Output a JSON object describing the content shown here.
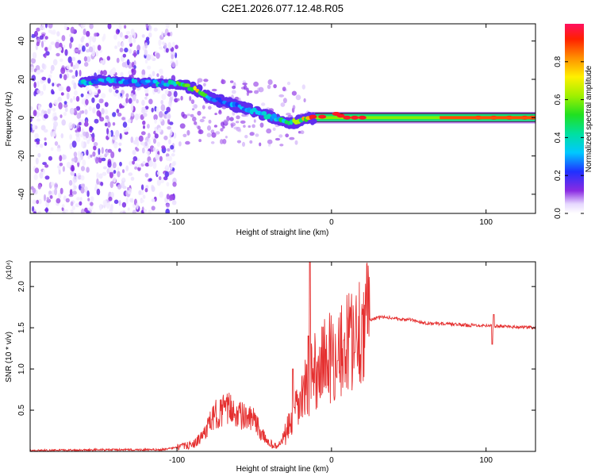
{
  "title": "C2E1.2026.077.12.48.R05",
  "chart_data": [
    {
      "type": "heatmap",
      "xlabel": "Height of straight line (km)",
      "ylabel": "Frequency (Hz)",
      "xlim": [
        -195,
        132
      ],
      "ylim": [
        -50,
        49
      ],
      "xticks": [
        {
          "value": -100,
          "label": "-100"
        },
        {
          "value": 0,
          "label": "0"
        },
        {
          "value": 100,
          "label": "100"
        }
      ],
      "yticks": [
        {
          "value": -40,
          "label": "-40"
        },
        {
          "value": -20,
          "label": "-20"
        },
        {
          "value": 0,
          "label": "0"
        },
        {
          "value": 20,
          "label": "20"
        },
        {
          "value": 40,
          "label": "40"
        }
      ],
      "noise_region": [
        -195,
        -100
      ],
      "ridge": [
        {
          "x": -162,
          "f": 18.5,
          "a": 0.35
        },
        {
          "x": -150,
          "f": 19.5,
          "a": 0.3
        },
        {
          "x": -135,
          "f": 18.5,
          "a": 0.28
        },
        {
          "x": -115,
          "f": 18,
          "a": 0.3
        },
        {
          "x": -100,
          "f": 17.5,
          "a": 0.45
        },
        {
          "x": -92,
          "f": 16,
          "a": 0.7
        },
        {
          "x": -86,
          "f": 14,
          "a": 0.6
        },
        {
          "x": -78,
          "f": 10,
          "a": 0.3
        },
        {
          "x": -62,
          "f": 6.5,
          "a": 0.25
        },
        {
          "x": -50,
          "f": 3.5,
          "a": 0.3
        },
        {
          "x": -38,
          "f": 0,
          "a": 0.35
        },
        {
          "x": -28,
          "f": -3,
          "a": 0.45
        },
        {
          "x": -22,
          "f": -2,
          "a": 0.55
        },
        {
          "x": -10,
          "f": 0.5,
          "a": 0.9
        },
        {
          "x": 5,
          "f": 1,
          "a": 0.85
        },
        {
          "x": 20,
          "f": 0,
          "a": 0.45
        },
        {
          "x": 60,
          "f": 0,
          "a": 0.4
        },
        {
          "x": 100,
          "f": 0,
          "a": 0.9
        },
        {
          "x": 130,
          "f": 0,
          "a": 0.95
        }
      ]
    },
    {
      "type": "line",
      "xlabel": "Height of straight line (km)",
      "ylabel": "SNR (10 * v/v)",
      "multiplier": "(x10⁴)",
      "xlim": [
        -195,
        132
      ],
      "ylim": [
        0,
        2.3
      ],
      "xticks": [
        {
          "value": -100,
          "label": "-100"
        },
        {
          "value": 0,
          "label": "0"
        },
        {
          "value": 100,
          "label": "100"
        }
      ],
      "yticks": [
        {
          "value": 0.5,
          "label": "0.5"
        },
        {
          "value": 1,
          "label": "1.0"
        },
        {
          "value": 1.5,
          "label": "1.5"
        },
        {
          "value": 2,
          "label": "2.0"
        }
      ],
      "series": [
        {
          "name": "SNR",
          "color": "#e53030",
          "x": [
            -195,
            -150,
            -110,
            -100,
            -90,
            -85,
            -80,
            -75,
            -70,
            -65,
            -60,
            -55,
            -50,
            -45,
            -40,
            -35,
            -30,
            -25,
            -20,
            -15,
            -10,
            -5,
            0,
            5,
            10,
            15,
            20,
            25,
            30,
            35,
            40,
            45,
            50,
            55,
            60,
            70,
            80,
            90,
            100,
            105,
            110,
            120,
            132
          ],
          "y": [
            0.01,
            0.02,
            0.02,
            0.05,
            0.08,
            0.15,
            0.3,
            0.45,
            0.5,
            0.52,
            0.45,
            0.4,
            0.38,
            0.2,
            0.1,
            0.05,
            0.2,
            0.4,
            0.6,
            0.85,
            1.0,
            1.1,
            1.15,
            1.2,
            1.3,
            1.45,
            1.55,
            1.6,
            1.62,
            1.63,
            1.62,
            1.6,
            1.6,
            1.58,
            1.56,
            1.55,
            1.54,
            1.53,
            1.53,
            1.52,
            1.52,
            1.51,
            1.5
          ]
        }
      ],
      "spikes": [
        {
          "x": -14,
          "y": 2.3
        },
        {
          "x": -15,
          "y": 1.4
        },
        {
          "x": 8,
          "y": 1.35
        },
        {
          "x": 4,
          "y": 1.1
        },
        {
          "x": -25,
          "y": 1.0
        },
        {
          "x": 15,
          "y": 1.2
        },
        {
          "x": 105,
          "y": 1.66
        },
        {
          "x": 104,
          "y": 1.3
        }
      ]
    }
  ],
  "colorbar": {
    "label": "Normalized spectral amplitude",
    "range": [
      0,
      1
    ],
    "ticks": [
      {
        "value": 0,
        "label": "0.0"
      },
      {
        "value": 0.2,
        "label": "0.2"
      },
      {
        "value": 0.4,
        "label": "0.4"
      },
      {
        "value": 0.6,
        "label": "0.6"
      },
      {
        "value": 0.8,
        "label": "0.8"
      }
    ]
  }
}
